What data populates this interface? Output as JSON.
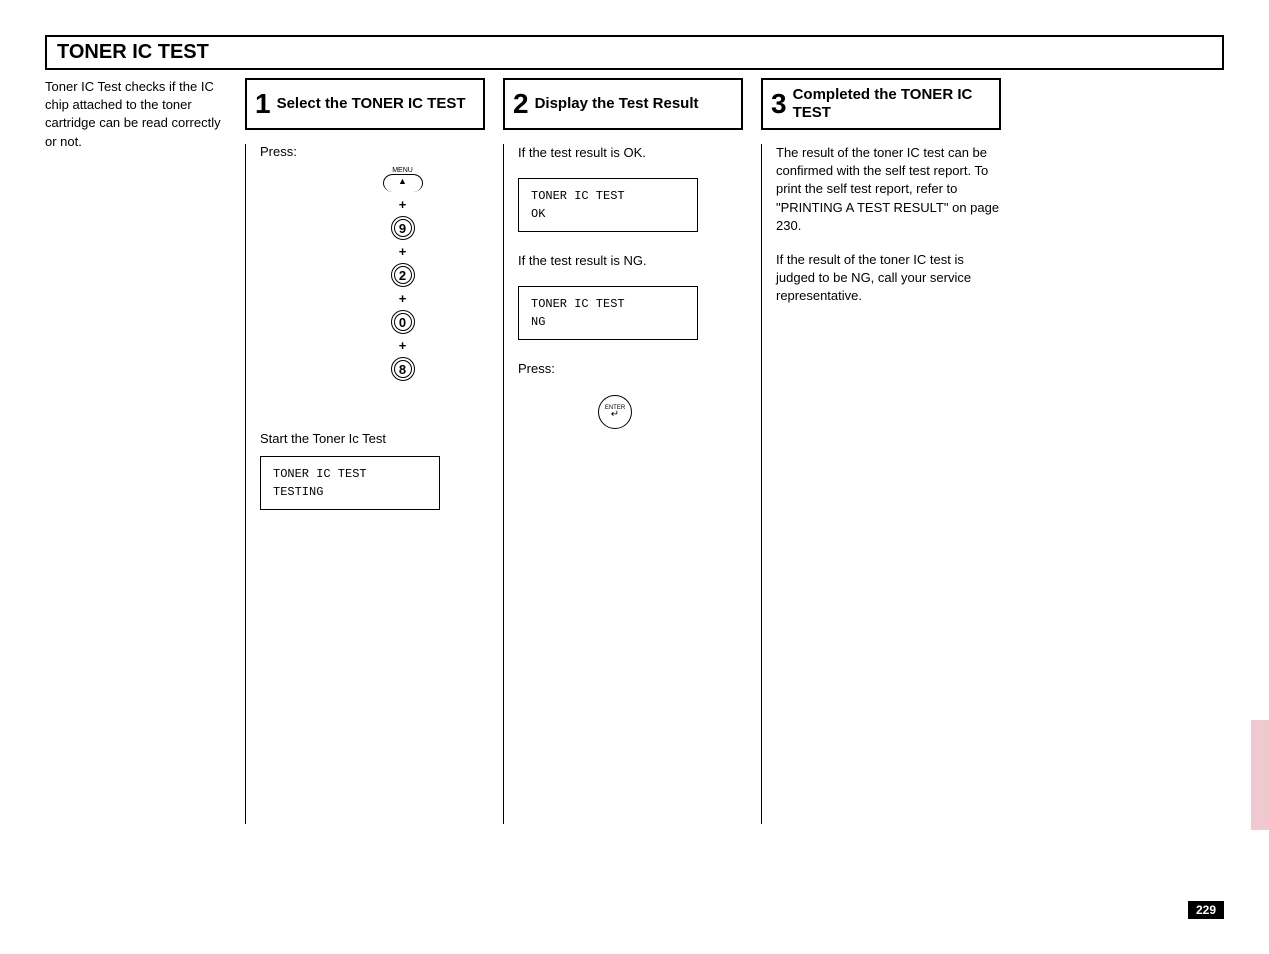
{
  "main_title": "TONER IC TEST",
  "intro_text": "Toner IC Test checks if the IC chip attached to the toner cartridge can be read correctly or not.",
  "step1": {
    "num": "1",
    "title": "Select the TONER IC TEST",
    "press_label": "Press:",
    "menu_label": "MENU",
    "menu_arrow": "▲",
    "plus": "+",
    "keys": [
      "9",
      "2",
      "0",
      "8"
    ],
    "sub_text": "Start the Toner Ic Test",
    "lcd_line1": "TONER IC TEST",
    "lcd_line2": "TESTING"
  },
  "step2": {
    "num": "2",
    "title": "Display the Test Result",
    "ok_text": "If the test result is OK.",
    "ok_lcd_line1": "TONER IC TEST",
    "ok_lcd_line2": "OK",
    "ng_text": "If the test result is NG.",
    "ng_lcd_line1": "TONER IC TEST",
    "ng_lcd_line2": "NG",
    "press_label": "Press:",
    "enter_label": "ENTER",
    "enter_arrow": "↵"
  },
  "step3": {
    "num": "3",
    "title": "Completed the TONER IC TEST",
    "para1": "The result of the toner IC test can be confirmed with the self test report. To print the self test report, refer to \"PRINTING A TEST RESULT\" on page 230.",
    "para2": "If the result of the toner IC test is judged to be NG, call your service representative."
  },
  "page_number": "229",
  "colors": {
    "side_tab": "#f0c8d0",
    "page_bg": "#000000",
    "page_text": "#ffffff"
  }
}
